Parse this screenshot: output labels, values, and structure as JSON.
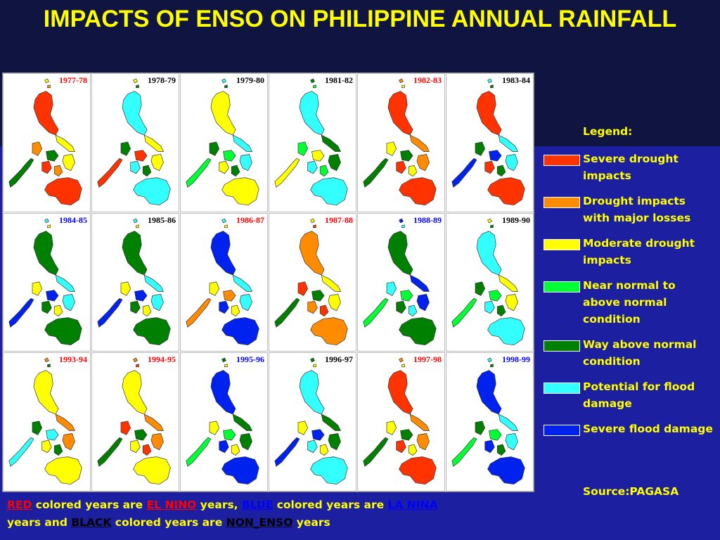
{
  "title": "IMPACTS OF ENSO ON PHILIPPINE ANNUAL RAINFALL",
  "colors": {
    "severe_drought": "#ff3300",
    "drought_major": "#ff8c00",
    "moderate_drought": "#ffff00",
    "near_normal": "#00ff33",
    "way_above": "#008000",
    "potential_flood": "#33ffff",
    "severe_flood": "#0022ee",
    "el_nino_label": "#ff0000",
    "la_nina_label": "#0000ff",
    "non_enso_label": "#000000"
  },
  "panels": [
    {
      "year": "1977-78",
      "type": "el_nino",
      "palette": [
        "severe_drought",
        "moderate_drought",
        "drought_major",
        "way_above"
      ]
    },
    {
      "year": "1978-79",
      "type": "non_enso",
      "palette": [
        "potential_flood",
        "moderate_drought",
        "way_above",
        "severe_drought"
      ]
    },
    {
      "year": "1979-80",
      "type": "non_enso",
      "palette": [
        "moderate_drought",
        "potential_flood",
        "way_above",
        "near_normal"
      ]
    },
    {
      "year": "1981-82",
      "type": "non_enso",
      "palette": [
        "potential_flood",
        "way_above",
        "near_normal",
        "moderate_drought"
      ]
    },
    {
      "year": "1982-83",
      "type": "el_nino",
      "palette": [
        "severe_drought",
        "drought_major",
        "moderate_drought",
        "way_above"
      ]
    },
    {
      "year": "1983-84",
      "type": "non_enso",
      "palette": [
        "severe_drought",
        "potential_flood",
        "way_above",
        "severe_flood"
      ]
    },
    {
      "year": "1984-85",
      "type": "la_nina",
      "palette": [
        "way_above",
        "potential_flood",
        "moderate_drought",
        "severe_flood"
      ]
    },
    {
      "year": "1985-86",
      "type": "non_enso",
      "palette": [
        "way_above",
        "potential_flood",
        "moderate_drought",
        "severe_flood"
      ]
    },
    {
      "year": "1986-87",
      "type": "el_nino",
      "palette": [
        "severe_flood",
        "potential_flood",
        "moderate_drought",
        "drought_major"
      ]
    },
    {
      "year": "1987-88",
      "type": "el_nino",
      "palette": [
        "drought_major",
        "moderate_drought",
        "severe_drought",
        "way_above"
      ]
    },
    {
      "year": "1988-89",
      "type": "la_nina",
      "palette": [
        "way_above",
        "severe_flood",
        "potential_flood",
        "near_normal"
      ]
    },
    {
      "year": "1989-90",
      "type": "non_enso",
      "palette": [
        "potential_flood",
        "moderate_drought",
        "way_above",
        "near_normal"
      ]
    },
    {
      "year": "1993-94",
      "type": "el_nino",
      "palette": [
        "moderate_drought",
        "drought_major",
        "way_above",
        "potential_flood"
      ]
    },
    {
      "year": "1994-95",
      "type": "el_nino",
      "palette": [
        "moderate_drought",
        "drought_major",
        "severe_drought",
        "way_above"
      ]
    },
    {
      "year": "1995-96",
      "type": "la_nina",
      "palette": [
        "severe_flood",
        "way_above",
        "moderate_drought",
        "near_normal"
      ]
    },
    {
      "year": "1996-97",
      "type": "non_enso",
      "palette": [
        "potential_flood",
        "way_above",
        "moderate_drought",
        "severe_flood"
      ]
    },
    {
      "year": "1997-98",
      "type": "el_nino",
      "palette": [
        "severe_drought",
        "drought_major",
        "moderate_drought",
        "way_above"
      ]
    },
    {
      "year": "1998-99",
      "type": "la_nina",
      "palette": [
        "severe_flood",
        "potential_flood",
        "way_above",
        "near_normal"
      ]
    }
  ],
  "legend": {
    "title": "Legend:",
    "items": [
      {
        "key": "severe_drought",
        "label": "Severe drought impacts"
      },
      {
        "key": "drought_major",
        "label": "Drought impacts with major losses"
      },
      {
        "key": "moderate_drought",
        "label": "Moderate drought impacts"
      },
      {
        "key": "near_normal",
        "label": "Near normal to above normal condition"
      },
      {
        "key": "way_above",
        "label": "Way above normal condition"
      },
      {
        "key": "potential_flood",
        "label": "Potential for flood damage"
      },
      {
        "key": "severe_flood",
        "label": "Severe flood damage"
      }
    ]
  },
  "source": "Source:PAGASA",
  "caption": {
    "red": "RED",
    "t1": " colored years are ",
    "el_nino": "EL NINO",
    "t2": " years, ",
    "blue": "BLUE",
    "t3": " colored years are ",
    "la_nina": "LA NINA",
    "t4": " years and ",
    "black": "BLACK",
    "t5": " colored years are ",
    "non_enso": "NON_ENSO",
    "t6": " years"
  }
}
